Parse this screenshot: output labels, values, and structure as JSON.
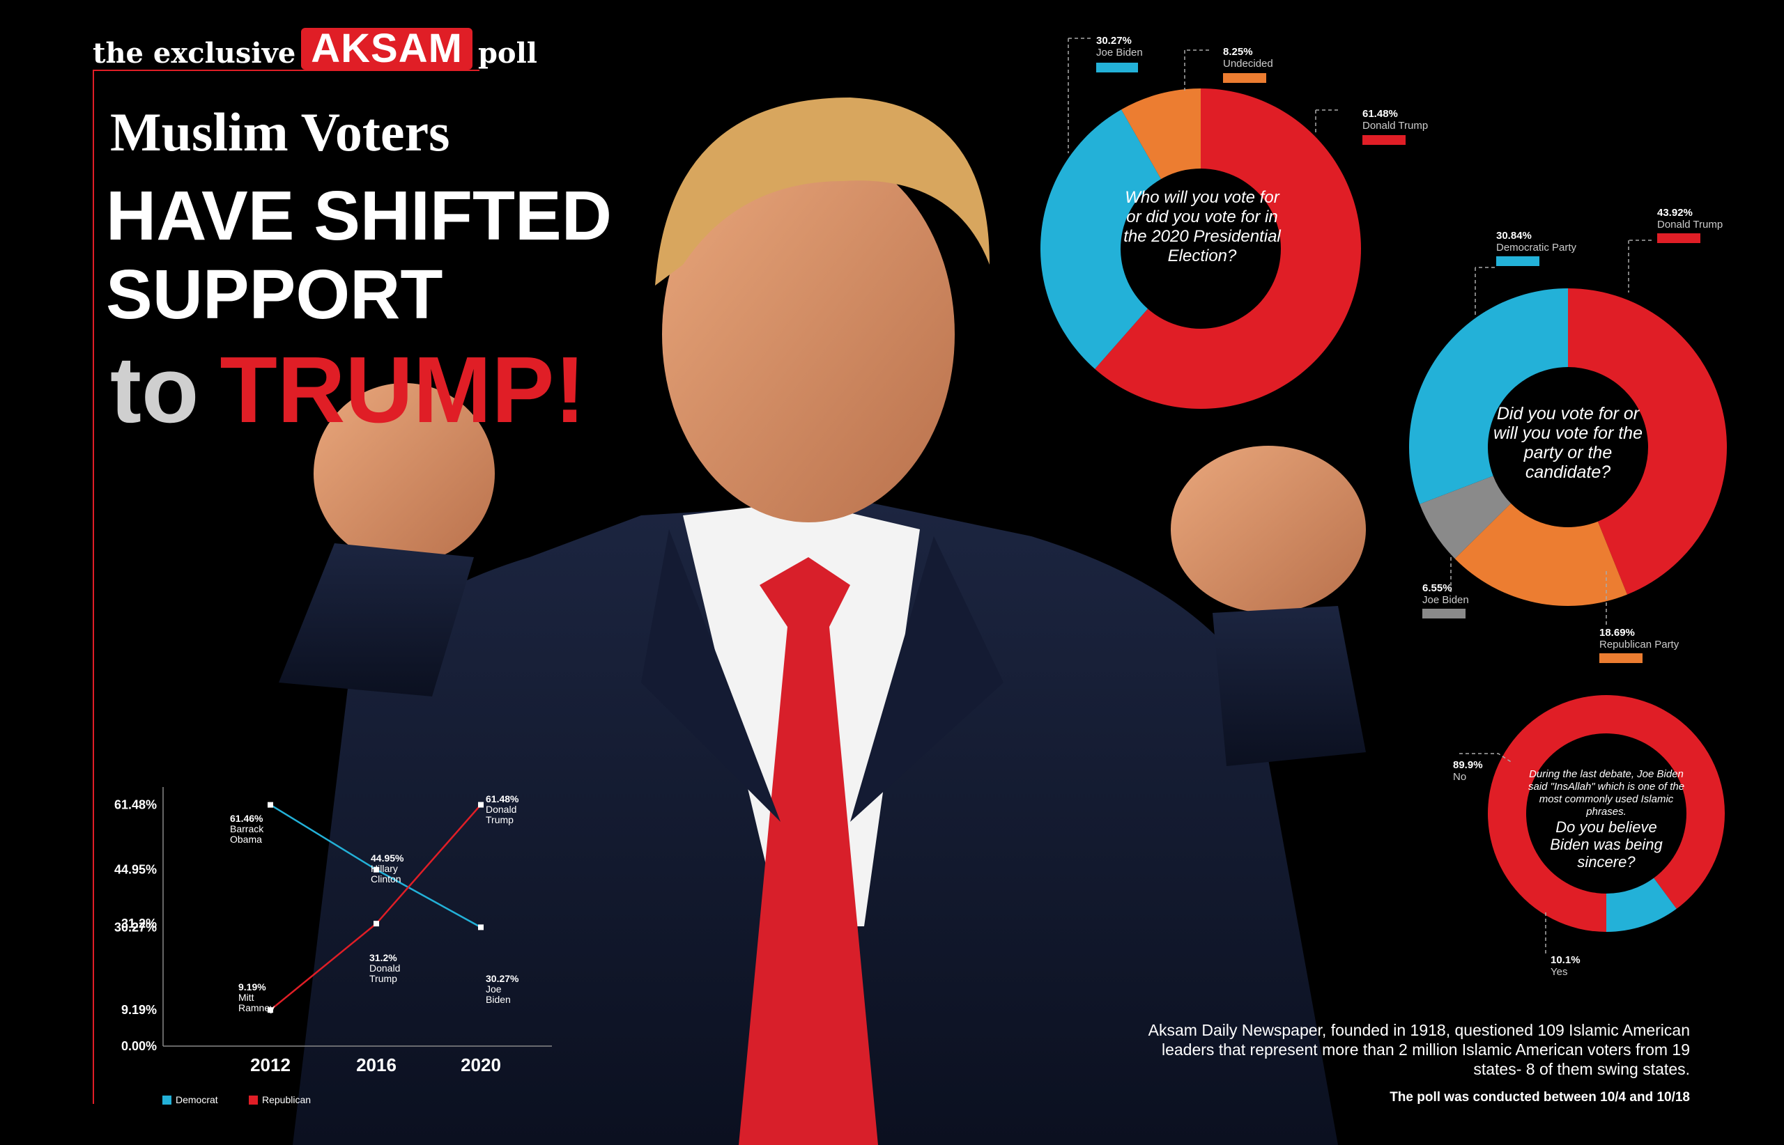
{
  "header": {
    "brand_prefix": "the exclusive",
    "brand_logo": "AKSAM",
    "brand_suffix": "poll",
    "title_line1": "Muslim Voters",
    "title_line2": "HAVE SHIFTED",
    "title_line3": "SUPPORT",
    "title_to": "to",
    "title_trump": "TRUMP!"
  },
  "colors": {
    "red": "#e01e26",
    "blue": "#23b1d8",
    "orange": "#ec7d31",
    "gray": "#8a8a8a"
  },
  "chart_data": [
    {
      "type": "pie",
      "title": "Who will you vote for or did you vote for in the 2020 Presidential Election?",
      "labels": [
        "Donald Trump",
        "Joe Biden",
        "Undecided"
      ],
      "values": [
        61.48,
        30.27,
        8.25
      ],
      "value_labels": [
        "61.48%",
        "30.27%",
        "8.25%"
      ],
      "colors": [
        "#e01e26",
        "#23b1d8",
        "#ec7d31"
      ]
    },
    {
      "type": "pie",
      "title": "Did you vote for or will you vote for the party or the candidate?",
      "labels": [
        "Donald Trump",
        "Republican Party",
        "Joe Biden",
        "Democratic Party"
      ],
      "values": [
        43.92,
        18.69,
        6.55,
        30.84
      ],
      "value_labels": [
        "43.92%",
        "18.69%",
        "6.55%",
        "30.84%"
      ],
      "colors": [
        "#e01e26",
        "#ec7d31",
        "#8a8a8a",
        "#23b1d8"
      ]
    },
    {
      "type": "pie",
      "intro": "During the last debate, Joe Biden said \"InsAllah\" which is one of the most commonly used Islamic phrases.",
      "title": "Do you believe Biden was being sincere?",
      "labels": [
        "No",
        "Yes"
      ],
      "values": [
        89.9,
        10.1
      ],
      "value_labels": [
        "89.9%",
        "10.1%"
      ],
      "colors": [
        "#e01e26",
        "#23b1d8"
      ]
    },
    {
      "type": "line",
      "categories": [
        "2012",
        "2016",
        "2020"
      ],
      "series": [
        {
          "name": "Democrat",
          "color": "#23b1d8",
          "values": [
            61.46,
            44.95,
            30.27
          ],
          "point_labels": [
            "61.46%",
            "44.95%",
            "30.27%"
          ],
          "candidates": [
            "Barrack Obama",
            "Hillary Clinton",
            "Joe Biden"
          ]
        },
        {
          "name": "Republican",
          "color": "#e01e26",
          "values": [
            9.19,
            31.2,
            61.48
          ],
          "point_labels": [
            "9.19%",
            "31.2%",
            "61.48%"
          ],
          "candidates": [
            "Mitt Ramney",
            "Donald Trump",
            "Donald Trump"
          ]
        }
      ],
      "yticks": [
        "61.48%",
        "44.95%",
        "31.2%",
        "30.27%",
        "9.19%",
        "0.00%"
      ],
      "ytick_values": [
        61.48,
        44.95,
        31.2,
        30.27,
        9.19,
        0
      ],
      "ylim": [
        0,
        66
      ]
    }
  ],
  "footer": {
    "description": "Aksam Daily Newspaper, founded in 1918, questioned 109 Islamic American leaders that represent more than 2 million Islamic American voters from 19 states- 8 of them swing states.",
    "poll_date": "The poll was conducted between 10/4 and 10/18"
  }
}
